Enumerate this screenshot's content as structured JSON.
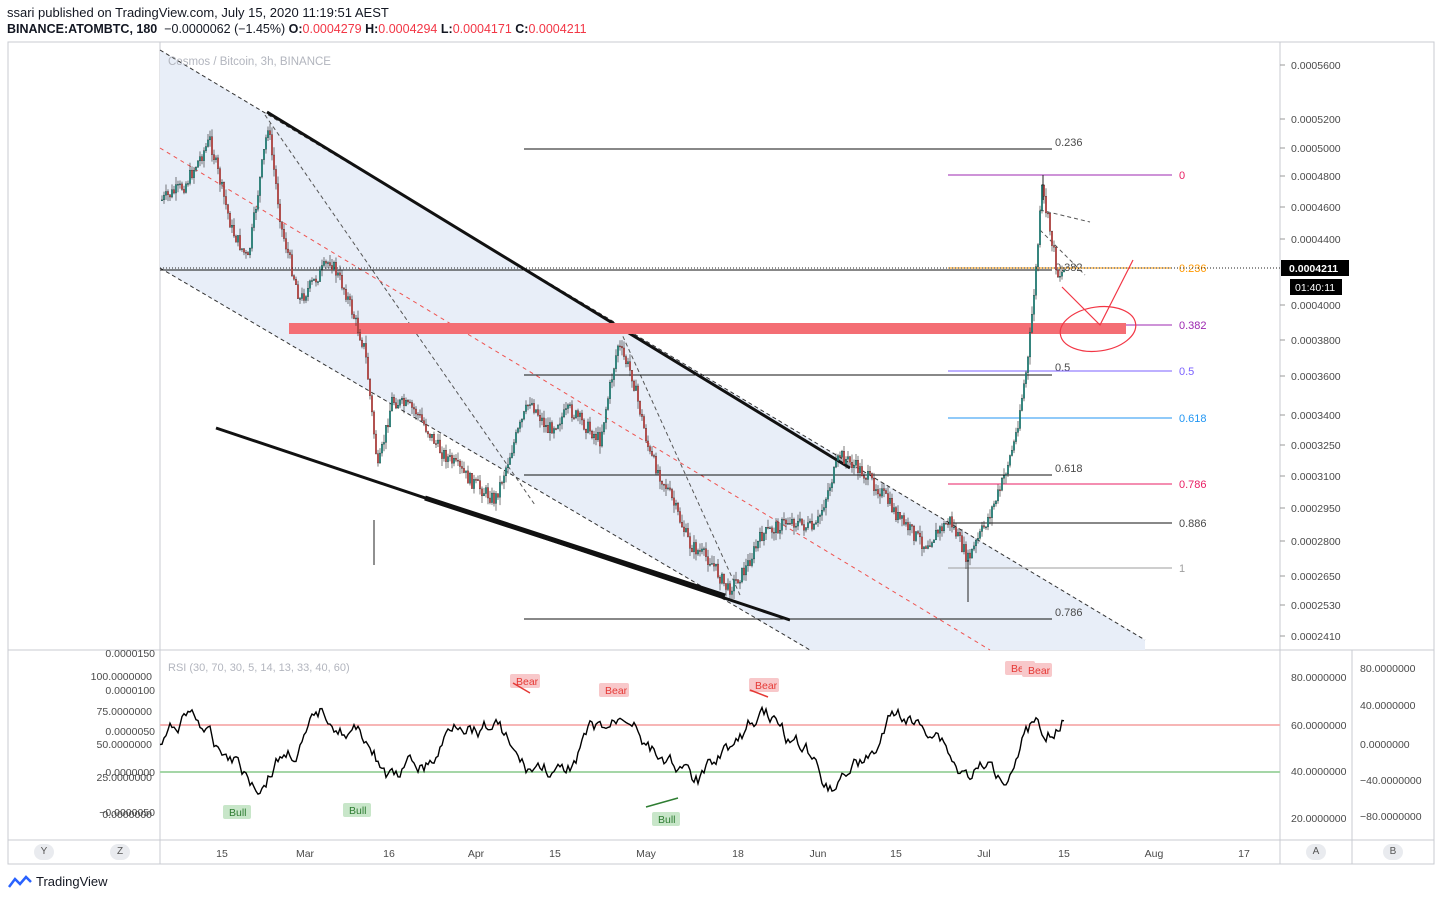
{
  "header": {
    "publisher": "ssari published on TradingView.com, July 15, 2020 11:19:51 AEST",
    "symbol": "BINANCE:ATOMBTC, 180",
    "change": "−0.0000062 (−1.45%)",
    "o_label": "O:",
    "o": "0.0004279",
    "h_label": "H:",
    "h": "0.0004294",
    "l_label": "L:",
    "l": "0.0004171",
    "c_label": "C:",
    "c": "0.0004211"
  },
  "chart_data": {
    "type": "candlestick",
    "title": "Cosmos / Bitcoin, 3h, BINANCE",
    "y_ticks": [
      "0.0005600",
      "0.0005200",
      "0.0005000",
      "0.0004800",
      "0.0004600",
      "0.0004400",
      "0.0004000",
      "0.0003800",
      "0.0003600",
      "0.0003400",
      "0.0003250",
      "0.0003100",
      "0.0002950",
      "0.0002800",
      "0.0002650",
      "0.0002530",
      "0.0002410"
    ],
    "x_ticks": [
      "15",
      "Mar",
      "16",
      "Apr",
      "15",
      "May",
      "18",
      "Jun",
      "15",
      "Jul",
      "15",
      "Aug",
      "17"
    ],
    "last_price": "0.0004211",
    "countdown": "01:40:11",
    "fib_left": [
      "0.236",
      "0.382",
      "0.5",
      "0.618",
      "0.786"
    ],
    "fib_right": [
      "0",
      "0.236",
      "0.382",
      "0.5",
      "0.618",
      "0.786",
      "0.886",
      "1"
    ],
    "indicator": {
      "name": "RSI (30, 70, 30, 5, 14, 13, 33, 40, 60)",
      "left_ticks": [
        "0.0000150",
        "0.0000100",
        "0.0000050",
        "0.0000000",
        "−0.0000050"
      ],
      "mid_ticks": [
        "100.0000000",
        "75.0000000",
        "50.0000000",
        "25.0000000",
        "0.0000000"
      ],
      "right_ticks": [
        "80.0000000",
        "60.0000000",
        "40.0000000",
        "20.0000000"
      ],
      "far_right_ticks": [
        "80.0000000",
        "40.0000000",
        "0.0000000",
        "−40.0000000",
        "−80.0000000"
      ],
      "bear_labels": [
        "Bear",
        "Bear",
        "Bear",
        "Bear",
        "Bear"
      ],
      "bull_labels": [
        "Bull",
        "Bull",
        "Bull"
      ]
    },
    "colors": {
      "up": "#26a69a",
      "down": "#ef5350",
      "zone": "#f46e74",
      "band": "#e6ecf8",
      "fib_pink": "#e91e63",
      "fib_orange": "#ff9800",
      "fib_purple": "#9c27b0",
      "fib_blue": "#2196f3"
    }
  },
  "controls": {
    "y": "Y",
    "z": "Z",
    "a": "A",
    "b": "B"
  },
  "footer": {
    "brand": "TradingView"
  }
}
